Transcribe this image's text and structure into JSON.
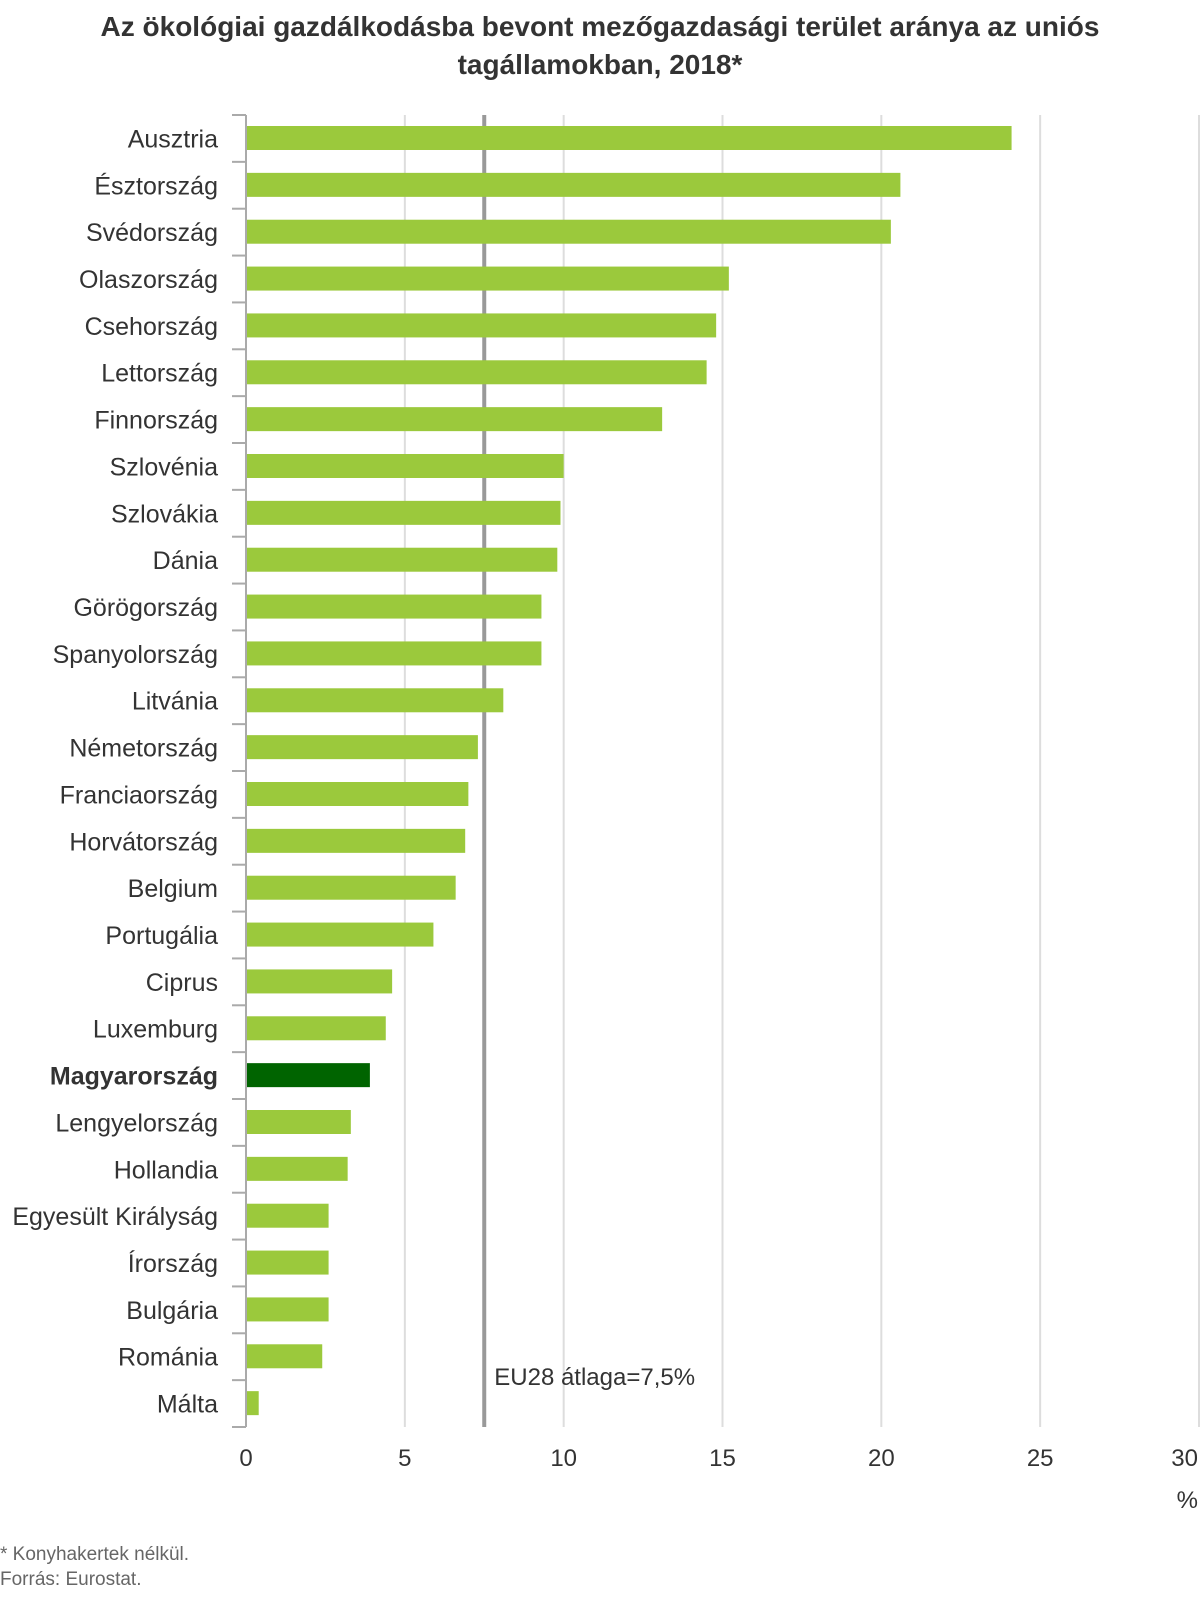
{
  "chart_data": {
    "type": "bar",
    "orientation": "horizontal",
    "title": "Az ökológiai gazdálkodásba bevont mezőgazdasági terület aránya az uniós tagállamokban, 2018*",
    "xlabel": "%",
    "ylabel": "",
    "xlim": [
      0,
      30
    ],
    "xticks": [
      0,
      5,
      10,
      15,
      20,
      25,
      30
    ],
    "grid": true,
    "categories": [
      "Ausztria",
      "Észtország",
      "Svédország",
      "Olaszország",
      "Csehország",
      "Lettország",
      "Finnország",
      "Szlovénia",
      "Szlovákia",
      "Dánia",
      "Görögország",
      "Spanyolország",
      "Litvánia",
      "Németország",
      "Franciaország",
      "Horvátország",
      "Belgium",
      "Portugália",
      "Ciprus",
      "Luxemburg",
      "Magyarország",
      "Lengyelország",
      "Hollandia",
      "Egyesült Királyság",
      "Írország",
      "Bulgária",
      "Románia",
      "Málta"
    ],
    "values": [
      24.1,
      20.6,
      20.3,
      15.2,
      14.8,
      14.5,
      13.1,
      10.0,
      9.9,
      9.8,
      9.3,
      9.3,
      8.1,
      7.3,
      7.0,
      6.9,
      6.6,
      5.9,
      4.6,
      4.4,
      3.9,
      3.3,
      3.2,
      2.6,
      2.6,
      2.6,
      2.4,
      0.4
    ],
    "highlight_category": "Magyarország",
    "colors": {
      "bar": "#9BC93C",
      "highlight": "#006400",
      "reference_line": "#999999",
      "grid": "#DDDDDD",
      "axis": "#AAAAAA"
    },
    "reference_line": {
      "value": 7.5,
      "label": "EU28 átlaga=7,5%"
    }
  },
  "footnotes": {
    "note": "* Konyhakertek nélkül.",
    "source": "Forrás: Eurostat."
  }
}
